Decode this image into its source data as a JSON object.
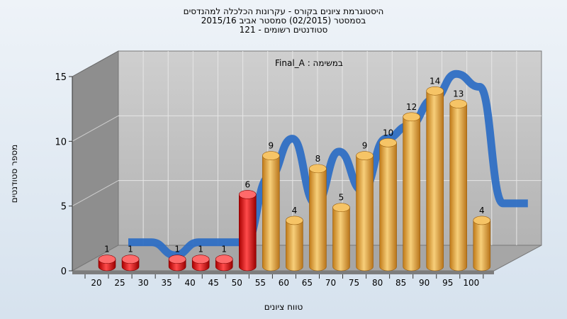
{
  "chart_data": {
    "type": "bar",
    "title_lines": [
      "היסטוגרמת ציונים בקורס - עקרונות הכלכלה למהנדסים",
      "בסמסטר  (02/2015)  סמסטר אביב 2015/16",
      "סטודנטים רשומים - 121"
    ],
    "annotation": "במשימה : Final_A",
    "xlabel": "טווח ציונים",
    "ylabel": "מספר סטודנטים",
    "categories": [
      "20",
      "25",
      "30",
      "35",
      "40",
      "45",
      "50",
      "55",
      "60",
      "65",
      "70",
      "75",
      "80",
      "85",
      "90",
      "95",
      "100"
    ],
    "values": [
      1,
      1,
      0,
      1,
      1,
      1,
      6,
      9,
      4,
      8,
      5,
      9,
      10,
      12,
      14,
      13,
      4
    ],
    "value_labels": [
      "1",
      "1",
      "",
      "1",
      "1",
      "1",
      "6",
      "9",
      "4",
      "8",
      "5",
      "9",
      "10",
      "12",
      "14",
      "13",
      "4"
    ],
    "yticks": [
      "0",
      "5",
      "10",
      "15"
    ],
    "ylim": [
      0,
      15
    ],
    "grid": true,
    "colors": {
      "fail": "#e01010",
      "pass": "#e8a640",
      "trend": "#2f6fc4",
      "wall": "#bdbdbd",
      "side_wall": "#8e8e8e",
      "floor": "#a6a6a6"
    }
  }
}
